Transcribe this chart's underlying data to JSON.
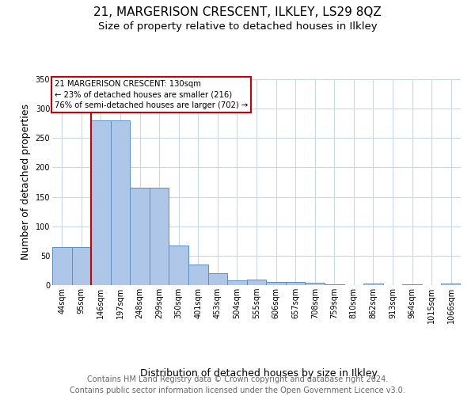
{
  "title": "21, MARGERISON CRESCENT, ILKLEY, LS29 8QZ",
  "subtitle": "Size of property relative to detached houses in Ilkley",
  "xlabel": "Distribution of detached houses by size in Ilkley",
  "ylabel": "Number of detached properties",
  "categories": [
    "44sqm",
    "95sqm",
    "146sqm",
    "197sqm",
    "248sqm",
    "299sqm",
    "350sqm",
    "401sqm",
    "453sqm",
    "504sqm",
    "555sqm",
    "606sqm",
    "657sqm",
    "708sqm",
    "759sqm",
    "810sqm",
    "862sqm",
    "913sqm",
    "964sqm",
    "1015sqm",
    "1066sqm"
  ],
  "values": [
    65,
    65,
    280,
    280,
    165,
    165,
    67,
    35,
    20,
    8,
    10,
    6,
    5,
    4,
    2,
    0,
    3,
    0,
    2,
    0,
    3
  ],
  "bar_color": "#aec6e8",
  "bar_edge_color": "#5a8fc2",
  "annotation_box_text": "21 MARGERISON CRESCENT: 130sqm\n← 23% of detached houses are smaller (216)\n76% of semi-detached houses are larger (702) →",
  "annotation_box_color": "#ffffff",
  "annotation_box_edge_color": "#cc0000",
  "vline_color": "#cc0000",
  "grid_color": "#c8d8e8",
  "background_color": "#ffffff",
  "footer": "Contains HM Land Registry data © Crown copyright and database right 2024.\nContains public sector information licensed under the Open Government Licence v3.0.",
  "ylim": [
    0,
    350
  ],
  "title_fontsize": 11,
  "subtitle_fontsize": 9.5,
  "axis_label_fontsize": 9,
  "tick_fontsize": 7,
  "footer_fontsize": 7
}
